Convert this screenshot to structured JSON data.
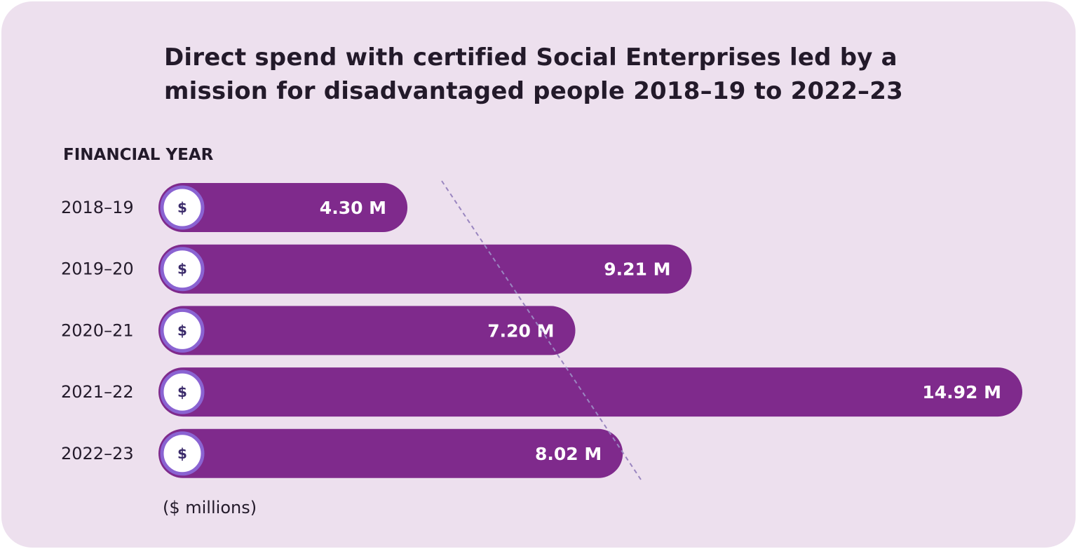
{
  "header": {
    "title": "Direct spend with certified Social Enterprises led by a mission for disadvantaged people 2018–19 to 2022–23"
  },
  "axis": {
    "category_label": "FINANCIAL YEAR",
    "unit_label": "($ millions)"
  },
  "icons": {
    "bar_icon": "dollar-icon",
    "bar_icon_glyph": "$"
  },
  "colors": {
    "background": "#ede0ee",
    "bar": "#7f2a8c",
    "icon_ring": "#8a63d2",
    "icon_fill": "#ffffff",
    "trend_line": "#9a86c0"
  },
  "chart_data": {
    "type": "bar",
    "orientation": "horizontal",
    "title": "Direct spend with certified Social Enterprises led by a mission for disadvantaged people 2018–19 to 2022–23",
    "ylabel": "FINANCIAL YEAR",
    "xlabel": "($ millions)",
    "categories": [
      "2018–19",
      "2019–20",
      "2020–21",
      "2021–22",
      "2022–23"
    ],
    "values": [
      4.3,
      9.21,
      7.2,
      14.92,
      8.02
    ],
    "value_labels": [
      "4.30 M",
      "9.21 M",
      "7.20 M",
      "14.92 M",
      "8.02 M"
    ],
    "xlim": [
      0,
      14.92
    ],
    "grid": false,
    "legend": "none",
    "trend_line": "dashed"
  }
}
